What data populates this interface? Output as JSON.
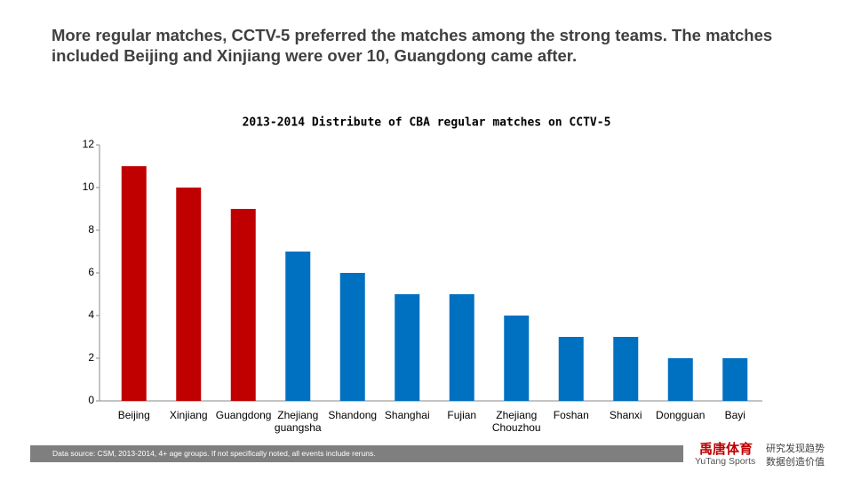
{
  "header": {
    "title": "More regular matches, CCTV-5 preferred  the matches among the strong teams. The matches included Beijing and Xinjiang were over 10, Guangdong came after."
  },
  "chart_data": {
    "type": "bar",
    "title": "2013-2014 Distribute of CBA regular matches on CCTV-5",
    "categories": [
      "Beijing",
      "Xinjiang",
      "Guangdong",
      "Zhejiang guangsha",
      "Shandong",
      "Shanghai",
      "Fujian",
      "Zhejiang Chouzhou",
      "Foshan",
      "Shanxi",
      "Dongguan",
      "Bayi"
    ],
    "values": [
      11,
      10,
      9,
      7,
      6,
      5,
      5,
      4,
      3,
      3,
      2,
      2
    ],
    "colors": [
      "#c00000",
      "#c00000",
      "#c00000",
      "#0070c0",
      "#0070c0",
      "#0070c0",
      "#0070c0",
      "#0070c0",
      "#0070c0",
      "#0070c0",
      "#0070c0",
      "#0070c0"
    ],
    "ylim": [
      0,
      12
    ],
    "yticks": [
      0,
      2,
      4,
      6,
      8,
      10,
      12
    ],
    "grid": false
  },
  "footer": {
    "source": "Data source: CSM, 2013-2014, 4+ age groups. If not specifically noted, all events include reruns.",
    "logo": "禹唐体育",
    "logo_en": "YuTang Sports",
    "slogan1": "研究发现趋势",
    "slogan2": "数据创造价值"
  }
}
